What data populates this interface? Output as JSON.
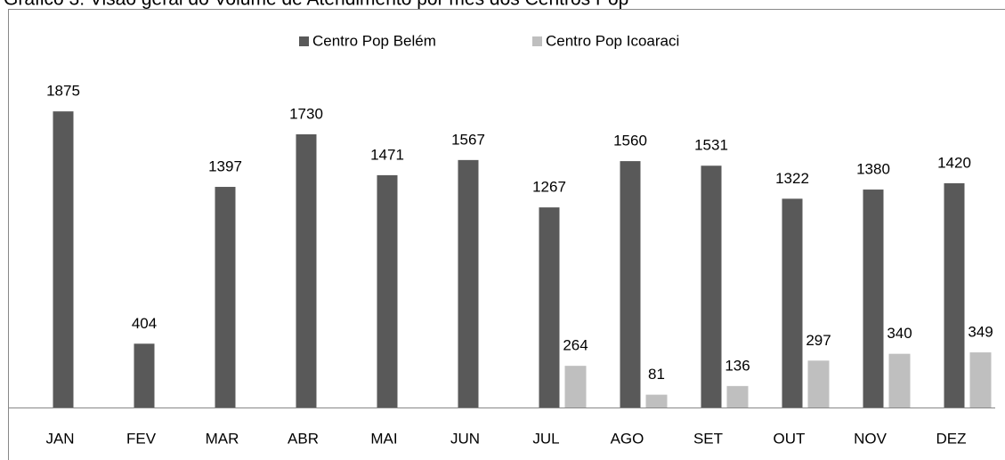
{
  "chart_data": {
    "type": "bar",
    "title": "Gráfico 3: Visão geral do Volume de Atendimento por mês dos Centros Pop",
    "categories": [
      "JAN",
      "FEV",
      "MAR",
      "ABR",
      "MAI",
      "JUN",
      "JUL",
      "AGO",
      "SET",
      "OUT",
      "NOV",
      "DEZ"
    ],
    "series": [
      {
        "name": "Centro Pop Belém",
        "color": "#595959",
        "values": [
          1875,
          404,
          1397,
          1730,
          1471,
          1567,
          1267,
          1560,
          1531,
          1322,
          1380,
          1420
        ]
      },
      {
        "name": "Centro Pop Icoaraci",
        "color": "#bfbfbf",
        "values": [
          null,
          null,
          null,
          null,
          null,
          null,
          264,
          81,
          136,
          297,
          340,
          349
        ]
      }
    ],
    "ylim": [
      0,
      2000
    ],
    "legend": "top"
  }
}
